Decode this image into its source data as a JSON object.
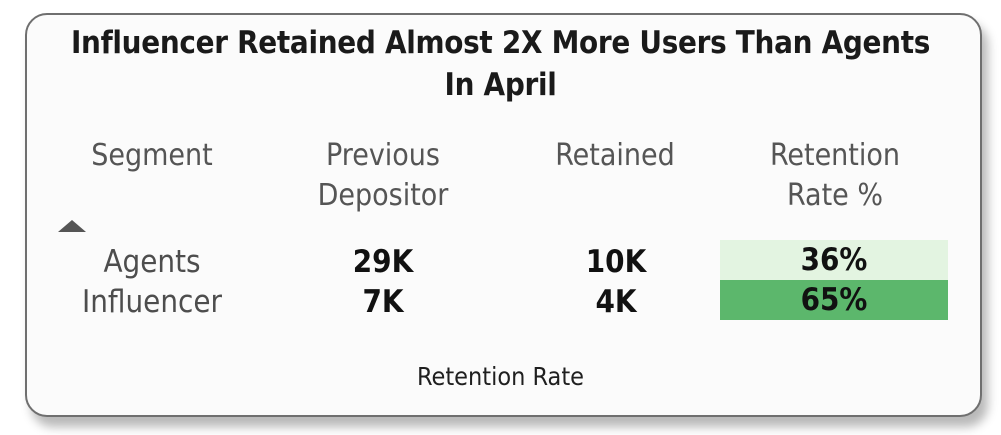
{
  "card": {
    "title_line1": "Influencer Retained Almost 2X More Users Than Agents",
    "title_line2": "In April",
    "footer": "Retention Rate"
  },
  "table": {
    "headers": {
      "segment": "Segment",
      "previous_line1": "Previous",
      "previous_line2": "Depositor",
      "retained": "Retained",
      "rate_line1": "Retention",
      "rate_line2": "Rate %"
    },
    "sort_icon": "sort-ascending-triangle",
    "rows": [
      {
        "segment": "Agents",
        "previous_depositor": "29K",
        "retained": "10K",
        "retention_rate": "36%",
        "rate_color": "#e3f4e1"
      },
      {
        "segment": "Influencer",
        "previous_depositor": "7K",
        "retained": "4K",
        "retention_rate": "65%",
        "rate_color": "#5cb76c"
      }
    ]
  }
}
